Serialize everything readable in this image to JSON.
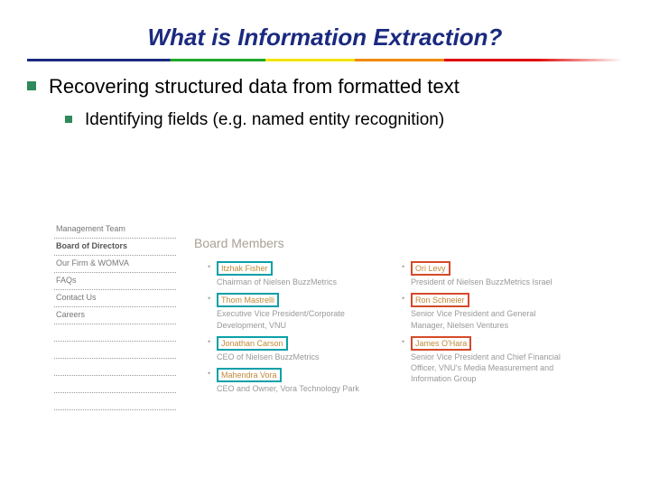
{
  "title": "What is Information Extraction?",
  "bullet1": "Recovering structured data from formatted text",
  "bullet2": "Identifying fields (e.g. named entity recognition)",
  "sidebar": {
    "items": [
      {
        "label": "Management Team",
        "bold": false
      },
      {
        "label": "Board of Directors",
        "bold": true
      },
      {
        "label": "Our Firm & WOMVA",
        "bold": false
      },
      {
        "label": "FAQs",
        "bold": false
      },
      {
        "label": "Contact Us",
        "bold": false
      },
      {
        "label": "Careers",
        "bold": false
      }
    ]
  },
  "panel_title": "Board Members",
  "members_left": [
    {
      "name": "Itzhak Fisher",
      "role": "Chairman of Nielsen BuzzMetrics",
      "color": "teal"
    },
    {
      "name": "Thom Mastrelli",
      "role": "Executive Vice President/Corporate Development, VNU",
      "color": "teal"
    },
    {
      "name": "Jonathan Carson",
      "role": "CEO of Nielsen BuzzMetrics",
      "color": "teal"
    },
    {
      "name": "Mahendra Vora",
      "role": "CEO and Owner, Vora Technology Park",
      "color": "teal"
    }
  ],
  "members_right": [
    {
      "name": "Ori Levy",
      "role": "President of Nielsen BuzzMetrics Israel",
      "color": "red"
    },
    {
      "name": "Ron Schneier",
      "role": "Senior Vice President and General Manager, Nielsen Ventures",
      "color": "red"
    },
    {
      "name": "James O'Hara",
      "role": "Senior Vice President and Chief Financial Officer, VNU's Media Measurement and Information Group",
      "color": "red"
    }
  ],
  "colors": {
    "title": "#1b2a80",
    "bullet_square": "#2e8a5a",
    "teal_box": "#0aa0a8",
    "red_box": "#d54a2a"
  }
}
